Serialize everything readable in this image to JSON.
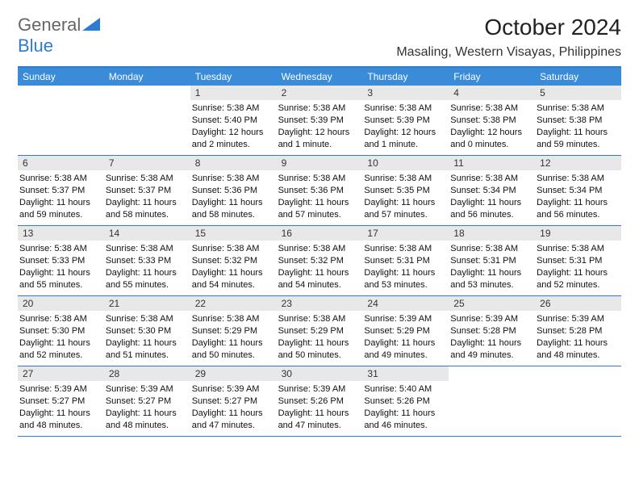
{
  "brand": {
    "part1": "General",
    "part2": "Blue"
  },
  "header": {
    "month_title": "October 2024",
    "location": "Masaling, Western Visayas, Philippines"
  },
  "colors": {
    "accent": "#2e7cd1",
    "header_bg": "#3a8bd8",
    "daynum_bg": "#e8e8e8",
    "text": "#111111"
  },
  "dow": [
    "Sunday",
    "Monday",
    "Tuesday",
    "Wednesday",
    "Thursday",
    "Friday",
    "Saturday"
  ],
  "weeks": [
    [
      null,
      null,
      {
        "n": "1",
        "sr": "5:38 AM",
        "ss": "5:40 PM",
        "dl": "12 hours and 2 minutes."
      },
      {
        "n": "2",
        "sr": "5:38 AM",
        "ss": "5:39 PM",
        "dl": "12 hours and 1 minute."
      },
      {
        "n": "3",
        "sr": "5:38 AM",
        "ss": "5:39 PM",
        "dl": "12 hours and 1 minute."
      },
      {
        "n": "4",
        "sr": "5:38 AM",
        "ss": "5:38 PM",
        "dl": "12 hours and 0 minutes."
      },
      {
        "n": "5",
        "sr": "5:38 AM",
        "ss": "5:38 PM",
        "dl": "11 hours and 59 minutes."
      }
    ],
    [
      {
        "n": "6",
        "sr": "5:38 AM",
        "ss": "5:37 PM",
        "dl": "11 hours and 59 minutes."
      },
      {
        "n": "7",
        "sr": "5:38 AM",
        "ss": "5:37 PM",
        "dl": "11 hours and 58 minutes."
      },
      {
        "n": "8",
        "sr": "5:38 AM",
        "ss": "5:36 PM",
        "dl": "11 hours and 58 minutes."
      },
      {
        "n": "9",
        "sr": "5:38 AM",
        "ss": "5:36 PM",
        "dl": "11 hours and 57 minutes."
      },
      {
        "n": "10",
        "sr": "5:38 AM",
        "ss": "5:35 PM",
        "dl": "11 hours and 57 minutes."
      },
      {
        "n": "11",
        "sr": "5:38 AM",
        "ss": "5:34 PM",
        "dl": "11 hours and 56 minutes."
      },
      {
        "n": "12",
        "sr": "5:38 AM",
        "ss": "5:34 PM",
        "dl": "11 hours and 56 minutes."
      }
    ],
    [
      {
        "n": "13",
        "sr": "5:38 AM",
        "ss": "5:33 PM",
        "dl": "11 hours and 55 minutes."
      },
      {
        "n": "14",
        "sr": "5:38 AM",
        "ss": "5:33 PM",
        "dl": "11 hours and 55 minutes."
      },
      {
        "n": "15",
        "sr": "5:38 AM",
        "ss": "5:32 PM",
        "dl": "11 hours and 54 minutes."
      },
      {
        "n": "16",
        "sr": "5:38 AM",
        "ss": "5:32 PM",
        "dl": "11 hours and 54 minutes."
      },
      {
        "n": "17",
        "sr": "5:38 AM",
        "ss": "5:31 PM",
        "dl": "11 hours and 53 minutes."
      },
      {
        "n": "18",
        "sr": "5:38 AM",
        "ss": "5:31 PM",
        "dl": "11 hours and 53 minutes."
      },
      {
        "n": "19",
        "sr": "5:38 AM",
        "ss": "5:31 PM",
        "dl": "11 hours and 52 minutes."
      }
    ],
    [
      {
        "n": "20",
        "sr": "5:38 AM",
        "ss": "5:30 PM",
        "dl": "11 hours and 52 minutes."
      },
      {
        "n": "21",
        "sr": "5:38 AM",
        "ss": "5:30 PM",
        "dl": "11 hours and 51 minutes."
      },
      {
        "n": "22",
        "sr": "5:38 AM",
        "ss": "5:29 PM",
        "dl": "11 hours and 50 minutes."
      },
      {
        "n": "23",
        "sr": "5:38 AM",
        "ss": "5:29 PM",
        "dl": "11 hours and 50 minutes."
      },
      {
        "n": "24",
        "sr": "5:39 AM",
        "ss": "5:29 PM",
        "dl": "11 hours and 49 minutes."
      },
      {
        "n": "25",
        "sr": "5:39 AM",
        "ss": "5:28 PM",
        "dl": "11 hours and 49 minutes."
      },
      {
        "n": "26",
        "sr": "5:39 AM",
        "ss": "5:28 PM",
        "dl": "11 hours and 48 minutes."
      }
    ],
    [
      {
        "n": "27",
        "sr": "5:39 AM",
        "ss": "5:27 PM",
        "dl": "11 hours and 48 minutes."
      },
      {
        "n": "28",
        "sr": "5:39 AM",
        "ss": "5:27 PM",
        "dl": "11 hours and 48 minutes."
      },
      {
        "n": "29",
        "sr": "5:39 AM",
        "ss": "5:27 PM",
        "dl": "11 hours and 47 minutes."
      },
      {
        "n": "30",
        "sr": "5:39 AM",
        "ss": "5:26 PM",
        "dl": "11 hours and 47 minutes."
      },
      {
        "n": "31",
        "sr": "5:40 AM",
        "ss": "5:26 PM",
        "dl": "11 hours and 46 minutes."
      },
      null,
      null
    ]
  ],
  "labels": {
    "sunrise": "Sunrise:",
    "sunset": "Sunset:",
    "daylight": "Daylight:"
  }
}
